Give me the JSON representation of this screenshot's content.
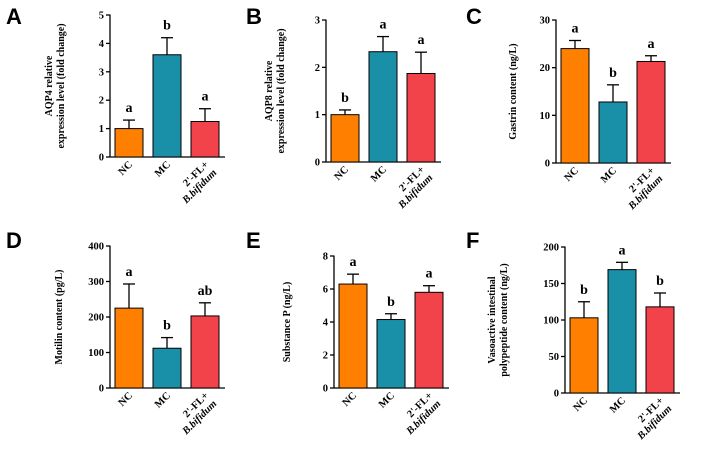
{
  "colors": {
    "NC": "#ff7f00",
    "MC": "#1a8fa8",
    "FL": "#f2434b"
  },
  "chart_data": [
    {
      "type": "bar",
      "panel": "A",
      "ylabel": "AQP4 relative\nexpression level (fold change)",
      "ylim": [
        0,
        5
      ],
      "yticks": [
        "0",
        "1",
        "2",
        "3",
        "4",
        "5"
      ],
      "categories": [
        "NC",
        "MC",
        "2'-FL+\nB.bifidum"
      ],
      "values": [
        1.0,
        3.6,
        1.25
      ],
      "errors": [
        0.3,
        0.6,
        0.45
      ],
      "significance": [
        "a",
        "b",
        "a"
      ]
    },
    {
      "type": "bar",
      "panel": "B",
      "ylabel": "AQP8 relative\nexpression level (fold change)",
      "ylim": [
        0,
        3
      ],
      "yticks": [
        "0",
        "1",
        "2",
        "3"
      ],
      "categories": [
        "NC",
        "MC",
        "2'-FL+\nB.bifidum"
      ],
      "values": [
        1.0,
        2.33,
        1.87
      ],
      "errors": [
        0.1,
        0.32,
        0.45
      ],
      "significance": [
        "b",
        "a",
        "a"
      ]
    },
    {
      "type": "bar",
      "panel": "C",
      "ylabel": "Gastrin content (ng/L)",
      "ylim": [
        0,
        30
      ],
      "yticks": [
        "0",
        "10",
        "20",
        "30"
      ],
      "categories": [
        "NC",
        "MC",
        "2'-FL+\nB.bifidum"
      ],
      "values": [
        24.0,
        12.8,
        21.3
      ],
      "errors": [
        1.7,
        3.6,
        1.2
      ],
      "significance": [
        "a",
        "b",
        "a"
      ]
    },
    {
      "type": "bar",
      "panel": "D",
      "ylabel": "Motilin content (pg/L)",
      "ylim": [
        0,
        400
      ],
      "yticks": [
        "0",
        "100",
        "200",
        "300",
        "400"
      ],
      "categories": [
        "NC",
        "MC",
        "2'-FL+\nB.bifidum"
      ],
      "values": [
        225,
        112,
        203
      ],
      "errors": [
        68,
        30,
        37
      ],
      "significance": [
        "a",
        "b",
        "ab"
      ]
    },
    {
      "type": "bar",
      "panel": "E",
      "ylabel": "Substance P (ng/L)",
      "ylim": [
        0,
        8
      ],
      "yticks": [
        "0",
        "2",
        "4",
        "6",
        "8"
      ],
      "categories": [
        "NC",
        "MC",
        "2'-FL+\nB.bifidum"
      ],
      "values": [
        6.3,
        4.15,
        5.8
      ],
      "errors": [
        0.6,
        0.35,
        0.4
      ],
      "significance": [
        "a",
        "b",
        "a"
      ]
    },
    {
      "type": "bar",
      "panel": "F",
      "ylabel": "Vasoactive intestinal\npolypeptide content (ng/L)",
      "ylim": [
        0,
        200
      ],
      "yticks": [
        "0",
        "50",
        "100",
        "150",
        "200"
      ],
      "categories": [
        "NC",
        "MC",
        "2'-FL+\nB.bifidum"
      ],
      "values": [
        103,
        169,
        118
      ],
      "errors": [
        22,
        10,
        19
      ],
      "significance": [
        "b",
        "a",
        "b"
      ]
    }
  ]
}
